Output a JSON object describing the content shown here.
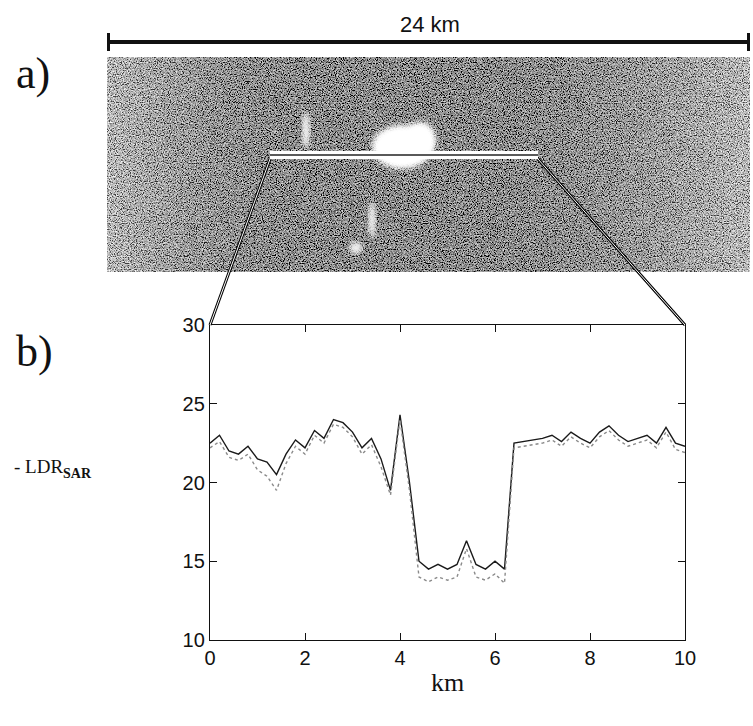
{
  "chart_data": {
    "type": "line",
    "x": [
      0,
      0.2,
      0.4,
      0.6,
      0.8,
      1,
      1.2,
      1.4,
      1.6,
      1.8,
      2,
      2.2,
      2.4,
      2.6,
      2.8,
      3,
      3.2,
      3.4,
      3.6,
      3.8,
      4,
      4.2,
      4.4,
      4.6,
      4.8,
      5,
      5.2,
      5.4,
      5.6,
      5.8,
      6,
      6.2,
      6.4,
      6.6,
      6.8,
      7,
      7.2,
      7.4,
      7.6,
      7.8,
      8,
      8.2,
      8.4,
      8.6,
      8.8,
      9,
      9.2,
      9.4,
      9.6,
      9.8,
      10
    ],
    "series": [
      {
        "color": "#1a1a1a",
        "line_style": "solid",
        "values": [
          22.5,
          23,
          22,
          21.8,
          22.3,
          21.5,
          21.3,
          20.5,
          21.8,
          22.7,
          22.2,
          23.3,
          22.8,
          24,
          23.8,
          23.2,
          22.2,
          22.8,
          21.5,
          19.5,
          24.3,
          20,
          15,
          14.5,
          14.8,
          14.5,
          14.8,
          16.3,
          14.8,
          14.5,
          15,
          14.5,
          22.5,
          22.6,
          22.7,
          22.8,
          23,
          22.6,
          23.2,
          22.8,
          22.5,
          23.2,
          23.6,
          23,
          22.6,
          22.8,
          23,
          22.5,
          23.5,
          22.5,
          22.3
        ]
      },
      {
        "color": "#8a8a8a",
        "line_style": "dotted",
        "values": [
          22.2,
          22.6,
          21.6,
          21.4,
          21.8,
          20.8,
          20.4,
          19.5,
          21.2,
          22.3,
          21.8,
          23,
          22.5,
          23.7,
          23.5,
          22.9,
          21.8,
          22.4,
          21,
          19.2,
          24,
          19.5,
          14,
          13.7,
          14,
          13.8,
          14,
          15.8,
          14,
          13.8,
          14.2,
          13.6,
          22.2,
          22.3,
          22.4,
          22.5,
          22.7,
          22.3,
          22.9,
          22.5,
          22.2,
          22.9,
          23.3,
          22.7,
          22.3,
          22.5,
          22.7,
          22.2,
          23.2,
          22.1,
          21.9
        ]
      }
    ],
    "xlabel": "km",
    "ylabel": {
      "text": "- LDR",
      "subscript": "SAR"
    },
    "xlim": [
      0,
      10
    ],
    "ylim": [
      10,
      30
    ],
    "xticks": [
      0,
      2,
      4,
      6,
      8,
      10
    ],
    "yticks": [
      10,
      15,
      20,
      25,
      30
    ],
    "grid": false
  },
  "figure": {
    "panel_a": {
      "label": "a)",
      "scale_bar": "24 km"
    },
    "panel_b": {
      "label": "b)"
    }
  }
}
